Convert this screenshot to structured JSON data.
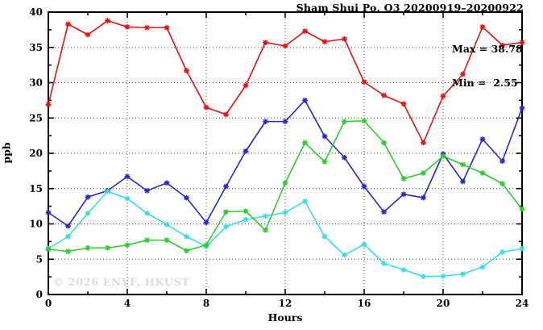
{
  "header": {
    "title": "Sham Shui Po, O3 20200919–20200922"
  },
  "chart_data": {
    "type": "line",
    "title": "Sham Shui Po, O3 20200919–20200922",
    "xlabel": "Hours",
    "ylabel": "ppb",
    "xlim": [
      0,
      24
    ],
    "ylim": [
      0,
      40
    ],
    "x_major_tick_step": 4,
    "x_minor_tick_step": 2,
    "y_major_tick_step": 5,
    "y_minor_tick_step": 2.5,
    "grid_x": [
      4,
      8,
      12,
      16,
      20
    ],
    "grid_y": [
      5,
      10,
      15,
      20,
      25,
      30,
      35
    ],
    "grid_style": "dotted",
    "legend": "none",
    "x": [
      0,
      1,
      2,
      3,
      4,
      5,
      6,
      7,
      8,
      9,
      10,
      11,
      12,
      13,
      14,
      15,
      16,
      17,
      18,
      19,
      20,
      21,
      22,
      23,
      24
    ],
    "series": [
      {
        "name": "series-red",
        "color": "#e81212",
        "values": [
          26.9,
          38.3,
          36.8,
          38.78,
          37.9,
          37.8,
          37.8,
          31.7,
          26.5,
          25.5,
          29.6,
          35.7,
          35.2,
          37.3,
          35.8,
          36.2,
          30.1,
          28.2,
          27.0,
          21.5,
          28.1,
          31.2,
          37.9,
          35.3,
          35.7
        ]
      },
      {
        "name": "series-blue",
        "color": "#2828cc",
        "values": [
          11.6,
          9.7,
          13.8,
          14.7,
          16.7,
          14.7,
          15.8,
          13.7,
          10.2,
          15.3,
          20.3,
          24.5,
          24.5,
          27.5,
          22.4,
          19.4,
          15.3,
          11.7,
          14.2,
          13.7,
          19.9,
          16.0,
          22.0,
          18.9,
          26.4
        ]
      },
      {
        "name": "series-cyan",
        "color": "#3cdde2",
        "values": [
          6.5,
          8.2,
          11.5,
          14.6,
          13.6,
          11.5,
          9.9,
          8.2,
          6.8,
          9.6,
          10.6,
          11.1,
          11.6,
          13.2,
          8.2,
          5.6,
          7.1,
          4.4,
          3.5,
          2.55,
          2.6,
          2.9,
          3.9,
          6.0,
          6.5
        ]
      },
      {
        "name": "series-green",
        "color": "#2ecc2e",
        "values": [
          6.4,
          6.1,
          6.6,
          6.6,
          7.0,
          7.7,
          7.7,
          6.2,
          7.0,
          11.7,
          11.8,
          9.1,
          15.8,
          21.5,
          18.8,
          24.5,
          24.6,
          21.5,
          16.4,
          17.2,
          19.6,
          18.4,
          17.2,
          15.7,
          12.1
        ]
      }
    ],
    "annotations": {
      "max": "Max = 38.78",
      "min": "Min =  2.55"
    },
    "max_value": 38.78,
    "min_value": 2.55,
    "watermark": "© 2026 ENVF, HKUST"
  }
}
